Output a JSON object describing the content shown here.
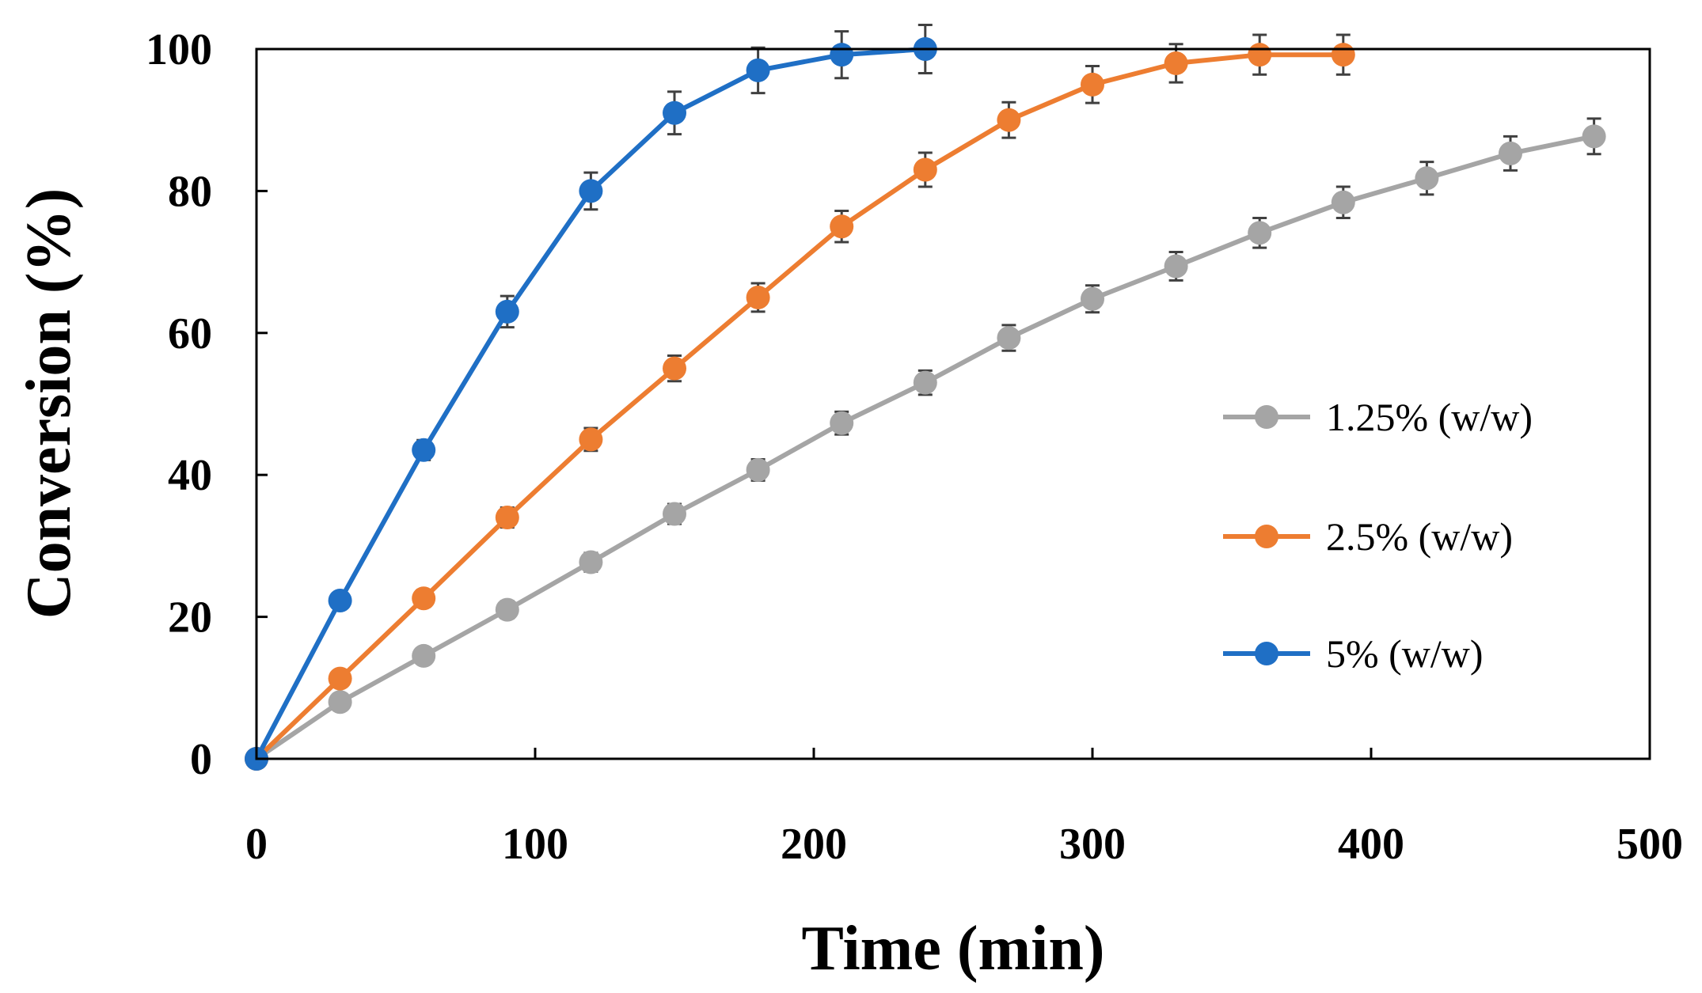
{
  "chart_data": {
    "type": "line",
    "title": "",
    "xlabel": "Time (min)",
    "ylabel": "Conversion (%)",
    "xlim": [
      0,
      500
    ],
    "ylim": [
      0,
      100
    ],
    "xticks": [
      0,
      100,
      200,
      300,
      400,
      500
    ],
    "yticks": [
      0,
      20,
      40,
      60,
      80,
      100
    ],
    "grid": false,
    "legend_position": "right",
    "series": [
      {
        "name": "1.25% (w/w)",
        "color": "#a5a5a5",
        "x": [
          0,
          30,
          60,
          90,
          120,
          150,
          180,
          210,
          240,
          270,
          300,
          330,
          360,
          390,
          420,
          450,
          480
        ],
        "y": [
          0,
          8,
          14.5,
          21,
          27.7,
          34.5,
          40.7,
          47.3,
          53,
          59.3,
          64.8,
          69.4,
          74.1,
          78.4,
          81.8,
          85.3,
          87.7
        ],
        "err": [
          0.8,
          1.0,
          1.1,
          1.2,
          1.3,
          1.4,
          1.5,
          1.6,
          1.7,
          1.8,
          1.9,
          2.0,
          2.1,
          2.2,
          2.3,
          2.4,
          2.5
        ]
      },
      {
        "name": "2.5% (w/w)",
        "color": "#ed7d31",
        "x": [
          0,
          30,
          60,
          90,
          120,
          150,
          180,
          210,
          240,
          270,
          300,
          330,
          360,
          390
        ],
        "y": [
          0,
          11.3,
          22.6,
          34,
          45,
          55,
          65,
          75,
          83,
          90,
          95,
          98,
          99.2,
          99.2
        ],
        "err": [
          0.8,
          1.0,
          1.2,
          1.4,
          1.6,
          1.8,
          2.0,
          2.2,
          2.4,
          2.5,
          2.6,
          2.7,
          2.8,
          2.8
        ]
      },
      {
        "name": "5% (w/w)",
        "color": "#1f6fc5",
        "x": [
          0,
          30,
          60,
          90,
          120,
          150,
          180,
          210,
          240
        ],
        "y": [
          0,
          22.3,
          43.5,
          63,
          80,
          91,
          97,
          99.2,
          100
        ],
        "err": [
          0.8,
          1.1,
          1.4,
          2.2,
          2.6,
          3.0,
          3.2,
          3.3,
          3.4
        ]
      }
    ]
  }
}
